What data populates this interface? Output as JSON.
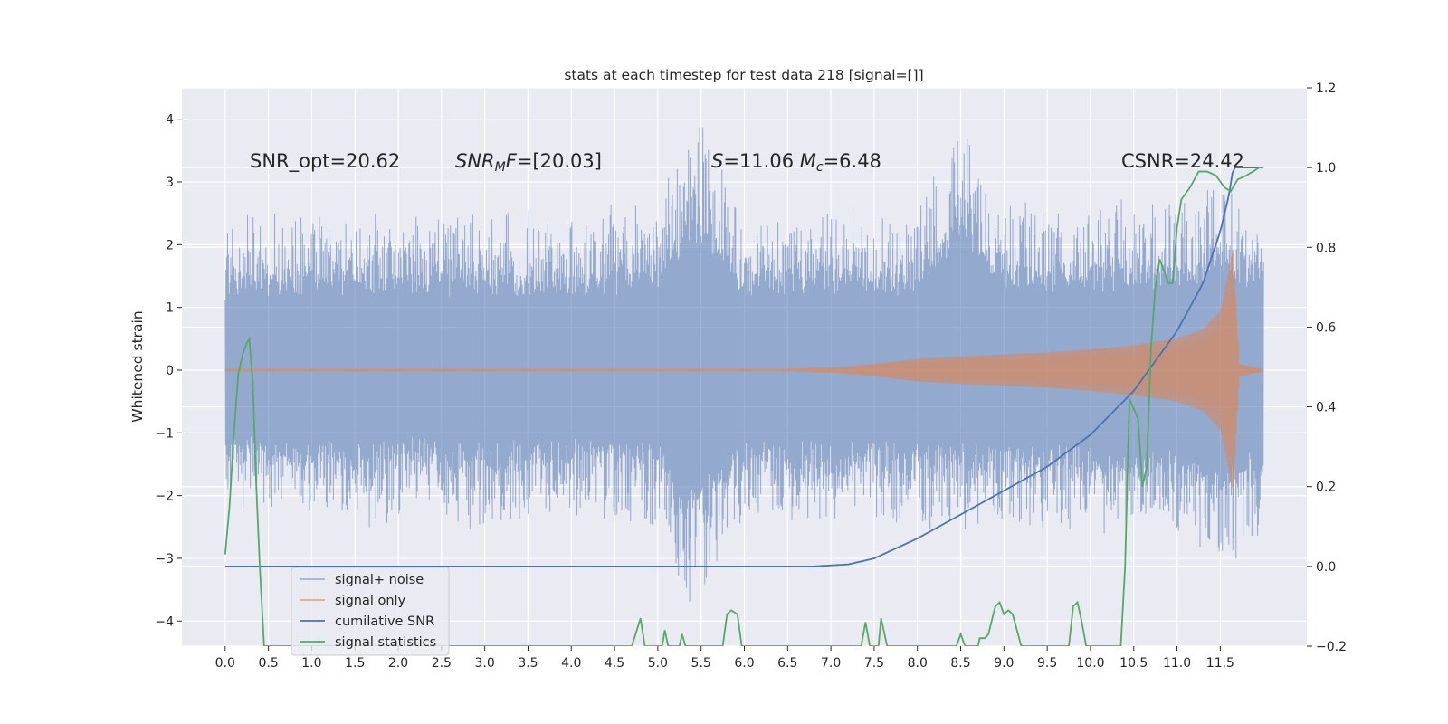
{
  "chart_data": {
    "type": "line",
    "title": "stats at each timestep for test data 218 [signal=[]]",
    "ylabel": "Whitened strain",
    "xlim": [
      -0.5,
      12.5
    ],
    "ylim": [
      -4.4,
      4.5
    ],
    "y2lim": [
      -0.2,
      1.2
    ],
    "grid": true,
    "x_ticks": [
      0.0,
      0.5,
      1.0,
      1.5,
      2.0,
      2.5,
      3.0,
      3.5,
      4.0,
      4.5,
      5.0,
      5.5,
      6.0,
      6.5,
      7.0,
      7.5,
      8.0,
      8.5,
      9.0,
      9.5,
      10.0,
      10.5,
      11.0,
      11.5
    ],
    "x_tick_labels": [
      "0.0",
      "0.5",
      "1.0",
      "1.5",
      "2.0",
      "2.5",
      "3.0",
      "3.5",
      "4.0",
      "4.5",
      "5.0",
      "5.5",
      "6.0",
      "6.5",
      "7.0",
      "7.5",
      "8.0",
      "8.5",
      "9.0",
      "9.5",
      "10.0",
      "10.5",
      "11.0",
      "11.5"
    ],
    "y_ticks": [
      -4,
      -3,
      -2,
      -1,
      0,
      1,
      2,
      3,
      4
    ],
    "y_tick_labels": [
      "−4",
      "−3",
      "−2",
      "−1",
      "0",
      "1",
      "2",
      "3",
      "4"
    ],
    "y2_ticks": [
      -0.2,
      0.0,
      0.2,
      0.4,
      0.6,
      0.8,
      1.0,
      1.2
    ],
    "y2_tick_labels": [
      "−0.2",
      "0.0",
      "0.2",
      "0.4",
      "0.6",
      "0.8",
      "1.0",
      "1.2"
    ],
    "annotations": {
      "snr_opt": "SNR_opt=20.62",
      "snr_mf": "SNR_M F=[20.03]",
      "s_mc": "S=11.06 M_c=6.48",
      "csnr": "CSNR=24.42"
    },
    "legend": {
      "position": "lower-left",
      "entries": [
        "signal+ noise",
        "signal only",
        "cumilative SNR",
        "signal statistics"
      ]
    },
    "series": [
      {
        "name": "signal+ noise",
        "axis": "left",
        "color": "#4c72b0",
        "x_range": [
          0.0,
          12.0
        ],
        "upper_envelope": [
          [
            0.0,
            2.3
          ],
          [
            1.0,
            2.5
          ],
          [
            2.0,
            2.4
          ],
          [
            3.0,
            2.5
          ],
          [
            4.0,
            2.4
          ],
          [
            5.0,
            2.6
          ],
          [
            5.4,
            4.1
          ],
          [
            6.0,
            2.5
          ],
          [
            7.0,
            2.5
          ],
          [
            8.0,
            2.5
          ],
          [
            8.5,
            4.0
          ],
          [
            9.0,
            2.6
          ],
          [
            10.0,
            2.6
          ],
          [
            11.0,
            2.7
          ],
          [
            11.5,
            3.0
          ],
          [
            12.0,
            2.6
          ]
        ],
        "lower_envelope": [
          [
            0.0,
            -2.2
          ],
          [
            1.0,
            -2.4
          ],
          [
            2.0,
            -2.3
          ],
          [
            3.0,
            -2.4
          ],
          [
            4.0,
            -2.3
          ],
          [
            5.0,
            -2.4
          ],
          [
            5.3,
            -3.8
          ],
          [
            6.0,
            -2.4
          ],
          [
            7.0,
            -2.4
          ],
          [
            8.0,
            -2.4
          ],
          [
            9.0,
            -2.5
          ],
          [
            10.0,
            -2.5
          ],
          [
            11.0,
            -2.6
          ],
          [
            11.5,
            -3.1
          ],
          [
            12.0,
            -2.6
          ]
        ]
      },
      {
        "name": "signal only",
        "axis": "left",
        "color": "#dd8452",
        "amplitude_envelope": [
          [
            0.0,
            0.02
          ],
          [
            6.5,
            0.02
          ],
          [
            7.0,
            0.04
          ],
          [
            7.5,
            0.1
          ],
          [
            8.0,
            0.18
          ],
          [
            8.5,
            0.22
          ],
          [
            9.0,
            0.25
          ],
          [
            9.5,
            0.28
          ],
          [
            10.0,
            0.33
          ],
          [
            10.5,
            0.4
          ],
          [
            11.0,
            0.5
          ],
          [
            11.3,
            0.65
          ],
          [
            11.5,
            0.95
          ],
          [
            11.6,
            1.6
          ],
          [
            11.65,
            2.0
          ],
          [
            11.72,
            0.1
          ],
          [
            12.0,
            0.02
          ]
        ]
      },
      {
        "name": "cumilative SNR",
        "axis": "right",
        "color": "#4c72b0",
        "points": [
          [
            0.0,
            0.0
          ],
          [
            6.8,
            0.0
          ],
          [
            7.2,
            0.005
          ],
          [
            7.5,
            0.02
          ],
          [
            8.0,
            0.07
          ],
          [
            8.5,
            0.13
          ],
          [
            9.0,
            0.19
          ],
          [
            9.5,
            0.25
          ],
          [
            10.0,
            0.33
          ],
          [
            10.5,
            0.44
          ],
          [
            11.0,
            0.59
          ],
          [
            11.3,
            0.71
          ],
          [
            11.5,
            0.84
          ],
          [
            11.6,
            0.93
          ],
          [
            11.65,
            1.0
          ],
          [
            12.0,
            1.0
          ]
        ]
      },
      {
        "name": "signal statistics",
        "axis": "right",
        "color": "#55a868",
        "points": [
          [
            0.0,
            0.03
          ],
          [
            0.05,
            0.15
          ],
          [
            0.1,
            0.33
          ],
          [
            0.15,
            0.48
          ],
          [
            0.2,
            0.53
          ],
          [
            0.25,
            0.56
          ],
          [
            0.28,
            0.57
          ],
          [
            0.32,
            0.46
          ],
          [
            0.36,
            0.2
          ],
          [
            0.4,
            0.0
          ],
          [
            0.45,
            -0.2
          ],
          [
            4.7,
            -0.2
          ],
          [
            4.8,
            -0.13
          ],
          [
            4.85,
            -0.2
          ],
          [
            5.05,
            -0.2
          ],
          [
            5.08,
            -0.16
          ],
          [
            5.12,
            -0.2
          ],
          [
            5.25,
            -0.2
          ],
          [
            5.28,
            -0.17
          ],
          [
            5.32,
            -0.2
          ],
          [
            5.75,
            -0.2
          ],
          [
            5.8,
            -0.12
          ],
          [
            5.85,
            -0.11
          ],
          [
            5.92,
            -0.12
          ],
          [
            5.97,
            -0.2
          ],
          [
            7.35,
            -0.2
          ],
          [
            7.4,
            -0.14
          ],
          [
            7.45,
            -0.2
          ],
          [
            7.55,
            -0.2
          ],
          [
            7.58,
            -0.13
          ],
          [
            7.65,
            -0.2
          ],
          [
            8.45,
            -0.2
          ],
          [
            8.5,
            -0.17
          ],
          [
            8.55,
            -0.2
          ],
          [
            8.7,
            -0.2
          ],
          [
            8.72,
            -0.18
          ],
          [
            8.78,
            -0.18
          ],
          [
            8.82,
            -0.17
          ],
          [
            8.9,
            -0.1
          ],
          [
            8.95,
            -0.09
          ],
          [
            9.0,
            -0.12
          ],
          [
            9.05,
            -0.11
          ],
          [
            9.1,
            -0.12
          ],
          [
            9.2,
            -0.2
          ],
          [
            9.75,
            -0.2
          ],
          [
            9.8,
            -0.1
          ],
          [
            9.85,
            -0.09
          ],
          [
            9.9,
            -0.14
          ],
          [
            9.95,
            -0.2
          ],
          [
            10.35,
            -0.2
          ],
          [
            10.4,
            0.0
          ],
          [
            10.45,
            0.42
          ],
          [
            10.55,
            0.37
          ],
          [
            10.6,
            0.2
          ],
          [
            10.65,
            0.25
          ],
          [
            10.7,
            0.55
          ],
          [
            10.75,
            0.7
          ],
          [
            10.8,
            0.77
          ],
          [
            10.9,
            0.71
          ],
          [
            10.95,
            0.71
          ],
          [
            11.0,
            0.85
          ],
          [
            11.05,
            0.92
          ],
          [
            11.15,
            0.95
          ],
          [
            11.25,
            0.99
          ],
          [
            11.35,
            0.99
          ],
          [
            11.45,
            0.98
          ],
          [
            11.55,
            0.95
          ],
          [
            11.62,
            0.94
          ],
          [
            11.7,
            0.97
          ],
          [
            11.8,
            0.98
          ],
          [
            11.95,
            1.0
          ],
          [
            12.0,
            1.0
          ]
        ]
      }
    ]
  }
}
